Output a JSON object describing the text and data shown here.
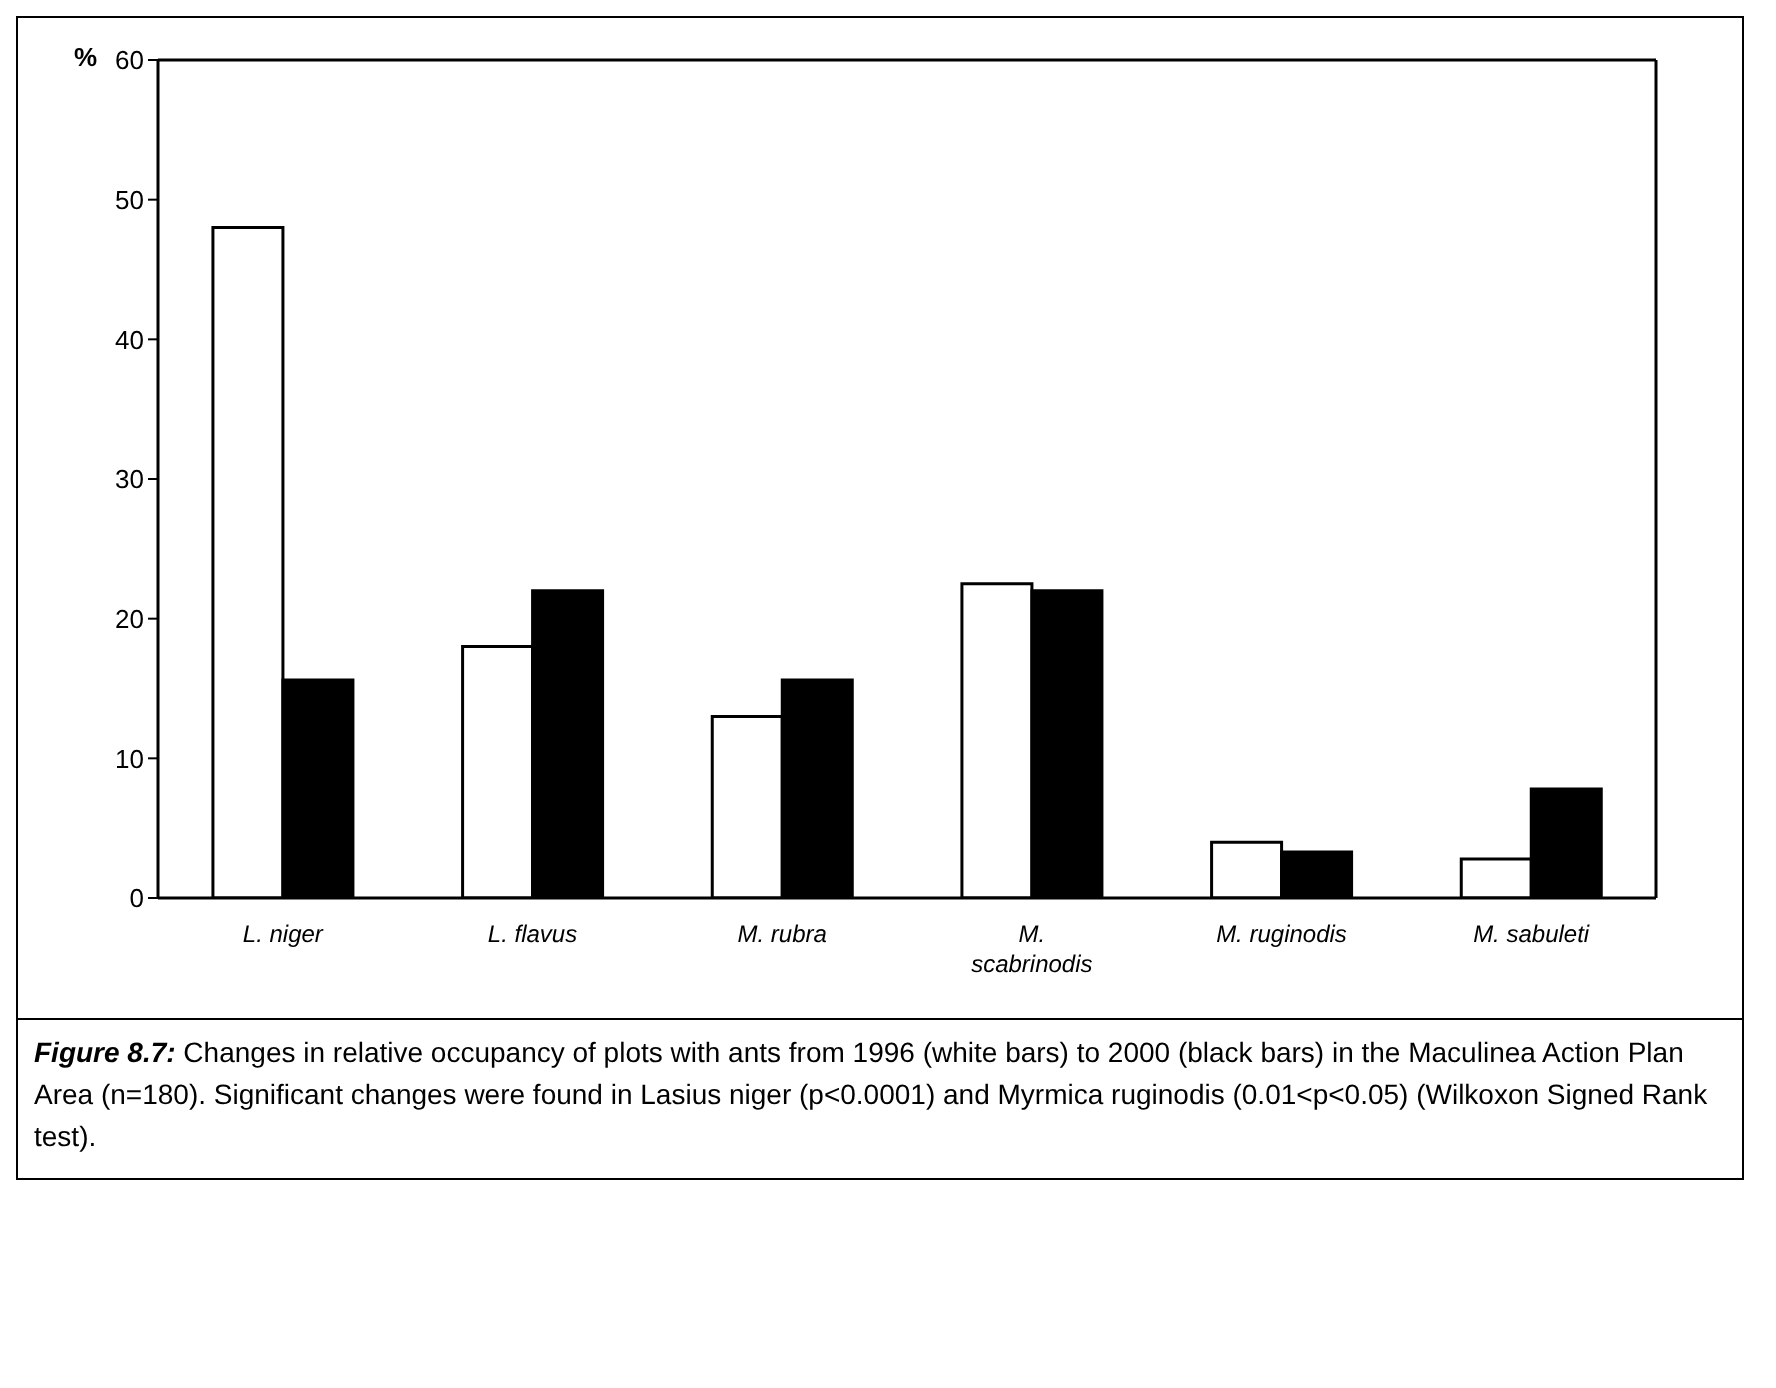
{
  "chart_data": {
    "type": "bar",
    "ylabel": "%",
    "categories": [
      "L. niger",
      "L. flavus",
      "M. rubra",
      "M. scabrinodis",
      "M. ruginodis",
      "M. sabuleti"
    ],
    "series": [
      {
        "color": "#ffffff",
        "values": [
          48,
          18,
          13,
          22.5,
          4,
          2.8
        ]
      },
      {
        "color": "#000000",
        "values": [
          15.6,
          22,
          15.6,
          22,
          3.3,
          7.8
        ]
      }
    ],
    "ylim": [
      0,
      60
    ],
    "yticks": [
      0,
      10,
      20,
      30,
      40,
      50,
      60
    ],
    "grid": false,
    "legend": false,
    "annotations": [
      "Figure 8.7: Changes in relative occupancy of plots with ants from 1996 (white bars) to 2000 (black bars) in the Maculinea Action Plan Area (n=180). Significant changes were found in Lasius niger (p<0.0001) and Myrmica ruginodis (0.01<p<0.05) (Wilkoxon Signed Rank test)."
    ]
  }
}
